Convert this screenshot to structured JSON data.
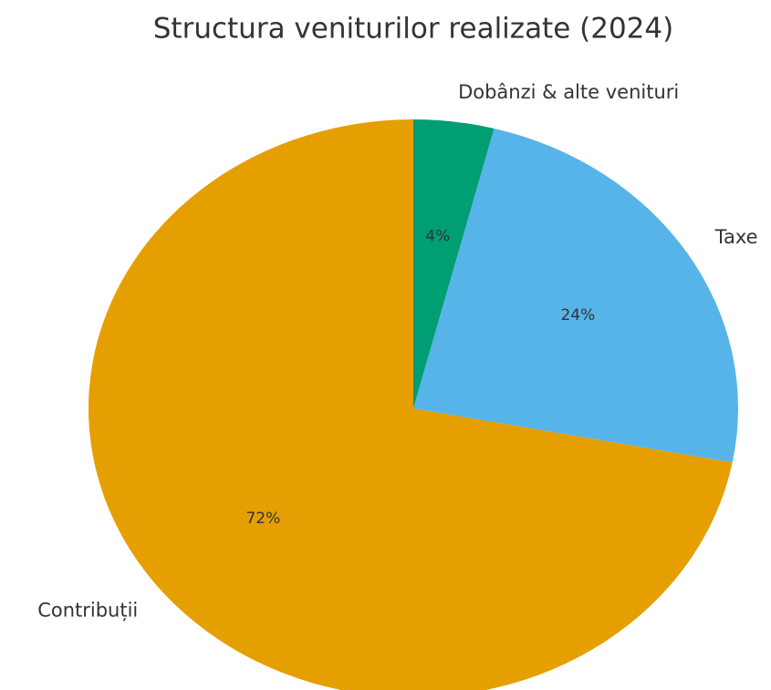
{
  "chart_data": {
    "type": "pie",
    "title": "Structura veniturilor realizate (2024)",
    "categories": [
      "Contribuții",
      "Taxe",
      "Dobânzi & alte venituri"
    ],
    "values": [
      72,
      24,
      4
    ],
    "value_labels": [
      "72%",
      "24%",
      "4%"
    ],
    "colors": [
      "#E69F00",
      "#56B4E9",
      "#009E73"
    ]
  }
}
